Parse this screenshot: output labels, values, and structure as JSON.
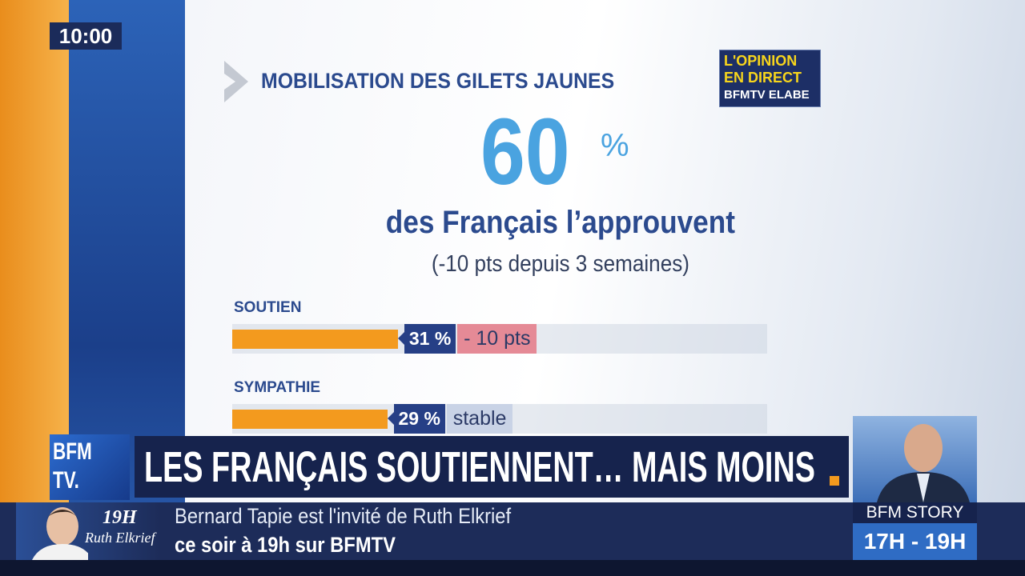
{
  "clock": "10:00",
  "graphic": {
    "title": "MOBILISATION DES GILETS JAUNES",
    "logo": {
      "line1": "L'OPINION",
      "line2": "EN DIRECT",
      "line3": "BFMTV ELABE"
    },
    "headline": {
      "number": "60",
      "unit": "%"
    },
    "statement": "des Français l’approuvent",
    "note": "(-10 pts depuis 3 semaines)",
    "bars": {
      "xlim": [
        0,
        100
      ],
      "color": "#f39a1e",
      "items": [
        {
          "label": "SOUTIEN",
          "value": 31,
          "value_label": "31 %",
          "change": "- 10 pts",
          "change_color": "#e58a96"
        },
        {
          "label": "SYMPATHIE",
          "value": 29,
          "value_label": "29 %",
          "change": "stable",
          "change_color": "#c9d3e6"
        }
      ]
    }
  },
  "channel_logo": {
    "line1": "BFM",
    "line2": "TV."
  },
  "banner": "LES FRANÇAIS SOUTIENNENT… MAIS MOINS",
  "show": {
    "time": "19H",
    "host": "Ruth Elkrief"
  },
  "ticker": {
    "line1": "Bernard Tapie est l'invité de Ruth Elkrief",
    "line2": "ce soir à 19h sur BFMTV"
  },
  "program": {
    "name": "BFM STORY",
    "hours": "17H - 19H"
  }
}
